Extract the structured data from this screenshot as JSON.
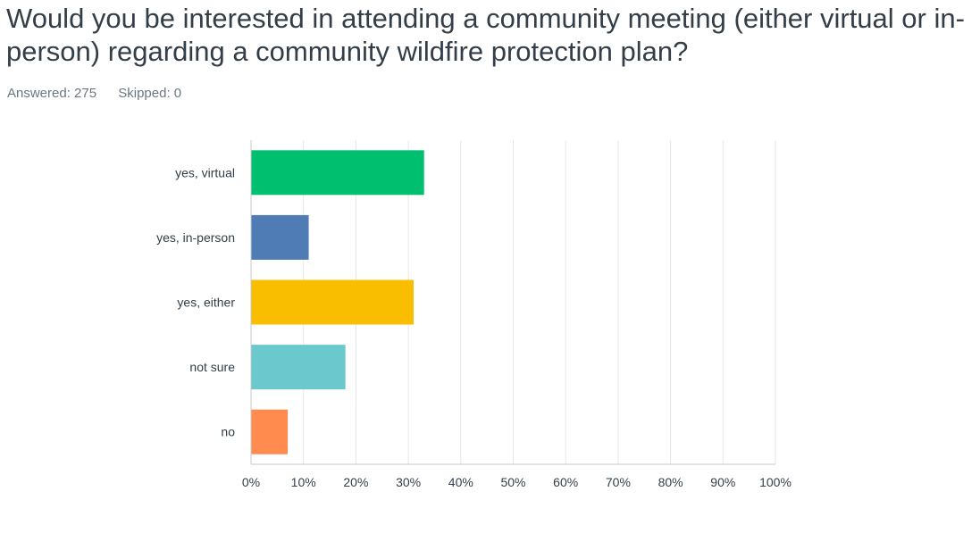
{
  "question": {
    "title": "Would you be interested in attending a community meeting (either virtual or in-person) regarding a community wildfire protection plan?"
  },
  "stats": {
    "answered_label": "Answered:",
    "answered_value": "275",
    "skipped_label": "Skipped:",
    "skipped_value": "0"
  },
  "chart_data": {
    "type": "bar",
    "orientation": "horizontal",
    "categories": [
      "yes, virtual",
      "yes, in-person",
      "yes, either",
      "not sure",
      "no"
    ],
    "values": [
      33,
      11,
      31,
      18,
      7
    ],
    "colors": [
      "#00bf6f",
      "#507cb6",
      "#f9be00",
      "#6bc8cd",
      "#ff8b4f"
    ],
    "xlim": [
      0,
      100
    ],
    "x_ticks": [
      "0%",
      "10%",
      "20%",
      "30%",
      "40%",
      "50%",
      "60%",
      "70%",
      "80%",
      "90%",
      "100%"
    ],
    "grid": true,
    "title": "",
    "xlabel": "",
    "ylabel": ""
  }
}
